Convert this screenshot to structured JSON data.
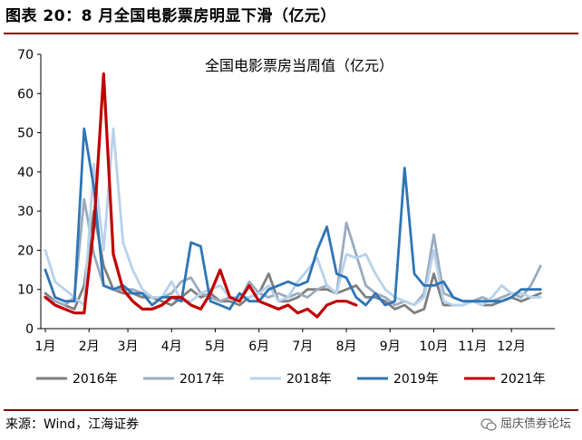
{
  "figure": {
    "title": "图表 20：8 月全国电影票房明显下滑（亿元）",
    "source": "来源：Wind，江海证券",
    "brand": "屈庆债券论坛",
    "brand_icon": "wechat-icon"
  },
  "chart_data": {
    "type": "line",
    "title": "全国电影票房当周值（亿元）",
    "xlabel": "",
    "ylabel": "",
    "ylim": [
      0,
      70
    ],
    "yticks": [
      0,
      10,
      20,
      30,
      40,
      50,
      60,
      70
    ],
    "x_unit": "week of year",
    "xlim": [
      1,
      53
    ],
    "xticks": [
      {
        "label": "1月",
        "week": 1
      },
      {
        "label": "2月",
        "week": 5.5
      },
      {
        "label": "3月",
        "week": 9.5
      },
      {
        "label": "4月",
        "week": 14
      },
      {
        "label": "5月",
        "week": 18.5
      },
      {
        "label": "6月",
        "week": 23
      },
      {
        "label": "7月",
        "week": 27.5
      },
      {
        "label": "8月",
        "week": 32
      },
      {
        "label": "9月",
        "week": 36.5
      },
      {
        "label": "10月",
        "week": 41
      },
      {
        "label": "11月",
        "week": 45
      },
      {
        "label": "12月",
        "week": 49
      }
    ],
    "grid": false,
    "legend": "bottom",
    "series": [
      {
        "name": "2016年",
        "color": "#7f7f7f",
        "x": [
          1,
          2,
          3,
          4,
          5,
          6,
          7,
          8,
          9,
          10,
          11,
          12,
          13,
          14,
          15,
          16,
          17,
          18,
          19,
          20,
          21,
          22,
          23,
          24,
          25,
          26,
          27,
          28,
          29,
          30,
          31,
          32,
          33,
          34,
          35,
          36,
          37,
          38,
          39,
          40,
          41,
          42,
          43,
          44,
          45,
          46,
          47,
          48,
          49,
          50,
          51,
          52
        ],
        "y": [
          9,
          7,
          6,
          5,
          11,
          30,
          16,
          10,
          9,
          9,
          8,
          8,
          7,
          6,
          8,
          10,
          8,
          9,
          7,
          7,
          6,
          8,
          9,
          14,
          7,
          7,
          8,
          10,
          10,
          10,
          9,
          10,
          11,
          8,
          8,
          7,
          5,
          6,
          4,
          5,
          14,
          6,
          6,
          6,
          7,
          6,
          6,
          7,
          8,
          7,
          8,
          9
        ]
      },
      {
        "name": "2017年",
        "color": "#9aabc0",
        "x": [
          1,
          2,
          3,
          4,
          5,
          6,
          7,
          8,
          9,
          10,
          11,
          12,
          13,
          14,
          15,
          16,
          17,
          18,
          19,
          20,
          21,
          22,
          23,
          24,
          25,
          26,
          27,
          28,
          29,
          30,
          31,
          32,
          33,
          34,
          35,
          36,
          37,
          38,
          39,
          40,
          41,
          42,
          43,
          44,
          45,
          46,
          47,
          48,
          49,
          50,
          51,
          52
        ],
        "y": [
          8,
          7,
          6,
          8,
          33,
          19,
          11,
          10,
          10,
          10,
          9,
          8,
          8,
          9,
          12,
          13,
          9,
          8,
          7,
          8,
          7,
          12,
          9,
          8,
          9,
          8,
          9,
          8,
          10,
          11,
          9,
          27,
          19,
          11,
          9,
          8,
          6,
          7,
          6,
          9,
          24,
          9,
          8,
          7,
          7,
          8,
          7,
          8,
          9,
          8,
          11,
          16
        ]
      },
      {
        "name": "2018年",
        "color": "#b7d2ec",
        "x": [
          1,
          2,
          3,
          4,
          5,
          6,
          7,
          8,
          9,
          10,
          11,
          12,
          13,
          14,
          15,
          16,
          17,
          18,
          19,
          20,
          21,
          22,
          23,
          24,
          25,
          26,
          27,
          28,
          29,
          30,
          31,
          32,
          33,
          34,
          35,
          36,
          37,
          38,
          39,
          40,
          41,
          42,
          43,
          44,
          45,
          46,
          47,
          48,
          49,
          50,
          51,
          52
        ],
        "y": [
          20,
          12,
          10,
          8,
          6,
          42,
          20,
          51,
          22,
          15,
          10,
          8,
          8,
          12,
          7,
          7,
          9,
          10,
          11,
          8,
          8,
          8,
          9,
          11,
          7,
          8,
          12,
          15,
          18,
          11,
          9,
          19,
          18,
          19,
          14,
          10,
          8,
          7,
          6,
          8,
          20,
          7,
          6,
          6,
          7,
          6,
          8,
          11,
          9,
          9,
          8,
          8
        ]
      },
      {
        "name": "2019年",
        "color": "#2e75b6",
        "x": [
          1,
          2,
          3,
          4,
          5,
          6,
          7,
          8,
          9,
          10,
          11,
          12,
          13,
          14,
          15,
          16,
          17,
          18,
          19,
          20,
          21,
          22,
          23,
          24,
          25,
          26,
          27,
          28,
          29,
          30,
          31,
          32,
          33,
          34,
          35,
          36,
          37,
          38,
          39,
          40,
          41,
          42,
          43,
          44,
          45,
          46,
          47,
          48,
          49,
          50,
          51,
          52
        ],
        "y": [
          15,
          8,
          7,
          7,
          51,
          36,
          11,
          10,
          11,
          9,
          9,
          6,
          8,
          8,
          7,
          22,
          21,
          7,
          6,
          5,
          9,
          7,
          7,
          10,
          11,
          12,
          11,
          12,
          20,
          26,
          14,
          13,
          8,
          6,
          9,
          6,
          7,
          41,
          14,
          11,
          11,
          12,
          8,
          7,
          7,
          7,
          7,
          7,
          8,
          10,
          10,
          10
        ]
      },
      {
        "name": "2021年",
        "color": "#c00000",
        "x": [
          1,
          2,
          3,
          4,
          5,
          6,
          7,
          8,
          9,
          10,
          11,
          12,
          13,
          14,
          15,
          16,
          17,
          18,
          19,
          20,
          21,
          22,
          23,
          24,
          25,
          26,
          27,
          28,
          29,
          30,
          31,
          32,
          33
        ],
        "y": [
          8,
          6,
          5,
          4,
          4,
          26,
          65,
          19,
          10,
          7,
          5,
          5,
          6,
          8,
          8,
          6,
          5,
          9,
          15,
          8,
          7,
          11,
          7,
          6,
          5,
          6,
          4,
          5,
          3,
          6,
          7,
          7,
          6
        ]
      }
    ]
  }
}
